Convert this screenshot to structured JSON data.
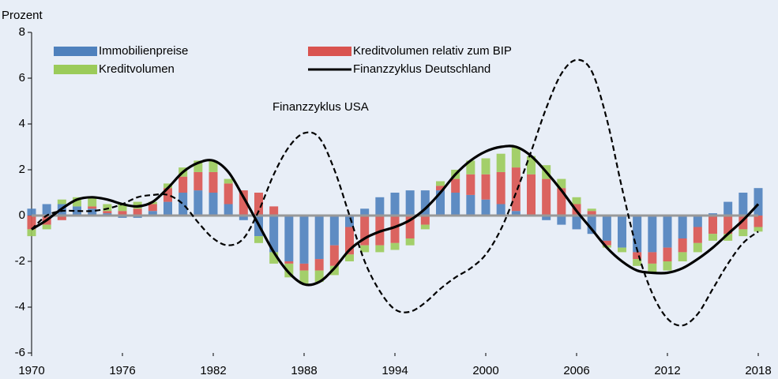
{
  "chart_data": {
    "type": "bar_line",
    "ylabel": "Prozent",
    "annotation": "Finanzzyklus USA",
    "xlim": [
      1970,
      2018
    ],
    "xticks": [
      1970,
      1976,
      1982,
      1988,
      1994,
      2000,
      2006,
      2012,
      2018
    ],
    "ylim": [
      -6,
      8
    ],
    "yticks": [
      -6,
      -4,
      -2,
      0,
      2,
      4,
      6,
      8
    ],
    "x": [
      1970,
      1971,
      1972,
      1973,
      1974,
      1975,
      1976,
      1977,
      1978,
      1979,
      1980,
      1981,
      1982,
      1983,
      1984,
      1985,
      1986,
      1987,
      1988,
      1989,
      1990,
      1991,
      1992,
      1993,
      1994,
      1995,
      1996,
      1997,
      1998,
      1999,
      2000,
      2001,
      2002,
      2003,
      2004,
      2005,
      2006,
      2007,
      2008,
      2009,
      2010,
      2011,
      2012,
      2013,
      2014,
      2015,
      2016,
      2017,
      2018
    ],
    "bar_series": [
      {
        "name": "Immobilienpreise",
        "color": "#4f81bd",
        "values": [
          0.3,
          0.5,
          0.5,
          0.4,
          0.3,
          0.1,
          -0.1,
          -0.1,
          0.2,
          0.6,
          1.0,
          1.1,
          1.0,
          0.5,
          -0.2,
          -0.9,
          -1.6,
          -2.0,
          -2.1,
          -1.9,
          -1.3,
          -0.5,
          0.3,
          0.8,
          1.0,
          1.1,
          1.1,
          1.1,
          1.0,
          0.9,
          0.7,
          0.5,
          0.2,
          0,
          -0.2,
          -0.4,
          -0.6,
          -0.8,
          -1.1,
          -1.4,
          -1.6,
          -1.6,
          -1.4,
          -1.0,
          -0.5,
          0.1,
          0.6,
          1.0,
          1.2
        ]
      },
      {
        "name": "Kreditvolumen relativ zum BIP",
        "color": "#d9534f",
        "values": [
          -0.6,
          -0.4,
          -0.2,
          0,
          0.1,
          0.1,
          0.2,
          0.3,
          0.3,
          0.6,
          0.7,
          0.8,
          0.9,
          0.9,
          1.1,
          1.0,
          0.4,
          -0.1,
          -0.3,
          -0.5,
          -0.9,
          -1.2,
          -1.3,
          -1.3,
          -1.2,
          -1.0,
          -0.4,
          0.2,
          0.6,
          0.9,
          1.1,
          1.4,
          1.9,
          1.8,
          1.6,
          1.2,
          0.5,
          0.2,
          -0.2,
          0,
          -0.3,
          -0.5,
          -0.6,
          -0.6,
          -0.7,
          -0.8,
          -0.8,
          -0.6,
          -0.5
        ]
      },
      {
        "name": "Kreditvolumen",
        "color": "#9bcb5a",
        "values": [
          -0.3,
          -0.2,
          0.2,
          0.4,
          0.4,
          0.3,
          0.3,
          0.3,
          0.1,
          0.2,
          0.4,
          0.5,
          0.5,
          0.2,
          0,
          -0.3,
          -0.5,
          -0.6,
          -0.6,
          -0.5,
          -0.4,
          -0.3,
          -0.3,
          -0.3,
          -0.3,
          -0.3,
          -0.2,
          0.2,
          0.4,
          0.6,
          0.7,
          0.8,
          0.9,
          0.8,
          0.6,
          0.4,
          0.3,
          0.1,
          -0.1,
          -0.2,
          -0.3,
          -0.4,
          -0.4,
          -0.4,
          -0.4,
          -0.3,
          -0.3,
          -0.3,
          -0.2
        ]
      }
    ],
    "line_series": [
      {
        "name": "Finanzzyklus Deutschland",
        "color": "#000000",
        "dashed": false,
        "values": [
          -0.6,
          -0.2,
          0.3,
          0.7,
          0.8,
          0.7,
          0.5,
          0.4,
          0.6,
          1.2,
          1.9,
          2.3,
          2.4,
          1.9,
          0.8,
          -0.4,
          -1.6,
          -2.5,
          -3.0,
          -2.9,
          -2.3,
          -1.5,
          -1.0,
          -0.7,
          -0.5,
          -0.2,
          0.3,
          1.0,
          1.8,
          2.4,
          2.8,
          3.0,
          3.0,
          2.6,
          1.9,
          1.1,
          0.2,
          -0.6,
          -1.4,
          -2.0,
          -2.4,
          -2.5,
          -2.5,
          -2.3,
          -1.9,
          -1.4,
          -0.8,
          -0.2,
          0.5
        ]
      },
      {
        "color": "#000000",
        "dashed": true,
        "values": [
          -0.6,
          0,
          0.2,
          0.2,
          0.2,
          0.3,
          0.5,
          0.8,
          0.9,
          0.9,
          0.5,
          -0.3,
          -1.0,
          -1.3,
          -1.0,
          0.2,
          1.8,
          3.0,
          3.6,
          3.4,
          2.0,
          0,
          -2.0,
          -3.3,
          -4.1,
          -4.2,
          -3.8,
          -3.2,
          -2.7,
          -2.3,
          -1.7,
          -0.6,
          1.0,
          2.8,
          4.7,
          6.2,
          6.8,
          6.3,
          4.2,
          1.2,
          -1.5,
          -3.4,
          -4.5,
          -4.8,
          -4.3,
          -3.2,
          -2.1,
          -1.2,
          -0.7
        ]
      }
    ]
  }
}
